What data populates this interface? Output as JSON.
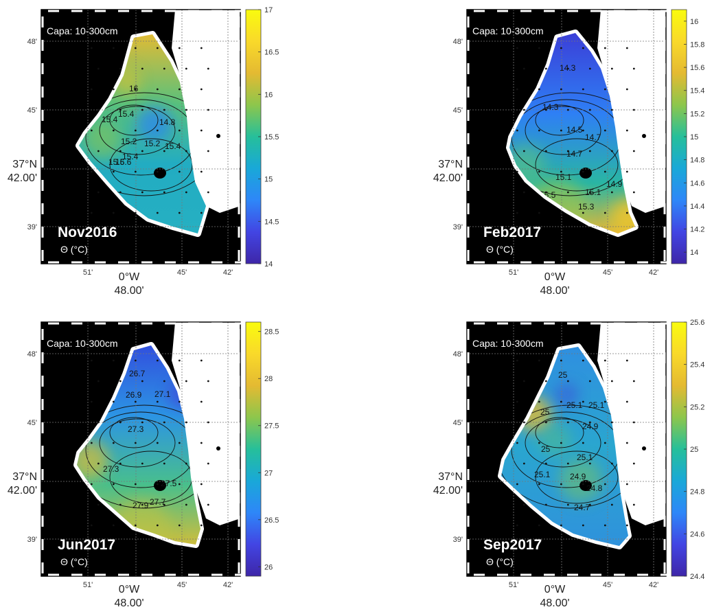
{
  "chart_data": [
    {
      "type": "heatmap",
      "period": "Nov2016",
      "layer_label": "Capa: 10-300cm",
      "unit_label": "Θ (°C)",
      "ylabel": [
        "37°N",
        "42.00'"
      ],
      "xlabel": [
        "0°W",
        "48.00'"
      ],
      "y_ticks": [
        "48'",
        "45'",
        "39'"
      ],
      "x_ticks": [
        "51'",
        "45'",
        "42'"
      ],
      "colorbar": {
        "min": 14,
        "max": 17,
        "ticks": [
          14,
          14.5,
          15,
          15.5,
          16,
          16.5,
          17
        ]
      },
      "contour_labels": [
        "16",
        "15.4",
        "15.4",
        "14.8",
        "15.2",
        "15.2",
        "15.4",
        "15.6",
        "15.4",
        "15.6"
      ]
    },
    {
      "type": "heatmap",
      "period": "Feb2017",
      "layer_label": "Capa: 10-300cm",
      "unit_label": "Θ (°C)",
      "ylabel": [
        "37°N",
        "42.00'"
      ],
      "xlabel": [
        "0°W",
        "48.00'"
      ],
      "y_ticks": [
        "48'",
        "45'",
        "39'"
      ],
      "x_ticks": [
        "51'",
        "45'",
        "42'"
      ],
      "colorbar": {
        "min": 13.9,
        "max": 16.1,
        "ticks": [
          14,
          14.2,
          14.4,
          14.6,
          14.8,
          15,
          15.2,
          15.4,
          15.6,
          15.8,
          16
        ]
      },
      "contour_labels": [
        "14.3",
        "14.3",
        "14.5",
        "14.7",
        "14.7",
        "15.1",
        "15.1",
        "14.9",
        "15.5",
        "15.3"
      ]
    },
    {
      "type": "heatmap",
      "period": "Jun2017",
      "layer_label": "Capa: 10-300cm",
      "unit_label": "Θ (°C)",
      "ylabel": [
        "37°N",
        "42.00'"
      ],
      "xlabel": [
        "0°W",
        "48.00'"
      ],
      "y_ticks": [
        "48'",
        "45'",
        "39'"
      ],
      "x_ticks": [
        "51'",
        "45'",
        "42'"
      ],
      "colorbar": {
        "min": 25.9,
        "max": 28.6,
        "ticks": [
          26,
          26.5,
          27,
          27.5,
          28,
          28.5
        ]
      },
      "contour_labels": [
        "26.7",
        "26.7",
        "26.9",
        "27.1",
        "27.3",
        "27.3",
        "27.5",
        "27.7",
        "27.9"
      ]
    },
    {
      "type": "heatmap",
      "period": "Sep2017",
      "layer_label": "Capa: 10-300cm",
      "unit_label": "Θ (°C)",
      "ylabel": [
        "37°N",
        "42.00'"
      ],
      "xlabel": [
        "0°W",
        "48.00'"
      ],
      "y_ticks": [
        "48'",
        "45'",
        "39'"
      ],
      "x_ticks": [
        "51'",
        "45'",
        "42'"
      ],
      "colorbar": {
        "min": 24.4,
        "max": 25.6,
        "ticks": [
          24.4,
          24.6,
          24.8,
          25,
          25.2,
          25.4,
          25.6
        ]
      },
      "contour_labels": [
        "25",
        "25.1",
        "25.1",
        "25",
        "24.9",
        "25",
        "25.1",
        "25.1",
        "24.9",
        "24.8",
        "24.7"
      ]
    }
  ]
}
